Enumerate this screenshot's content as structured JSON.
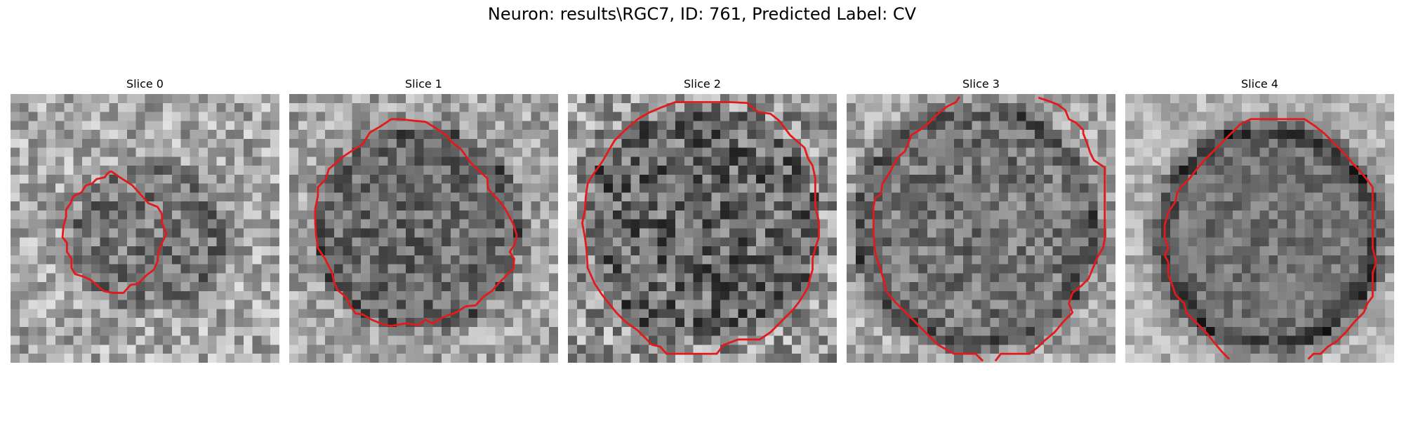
{
  "figure": {
    "suptitle": "Neuron: results\\RGC7, ID: 761, Predicted Label: CV",
    "panels": [
      {
        "title": "Slice 0"
      },
      {
        "title": "Slice 1"
      },
      {
        "title": "Slice 2"
      },
      {
        "title": "Slice 3"
      },
      {
        "title": "Slice 4"
      }
    ],
    "contour_color": "#e31a1c",
    "image_colormap": "gray"
  }
}
